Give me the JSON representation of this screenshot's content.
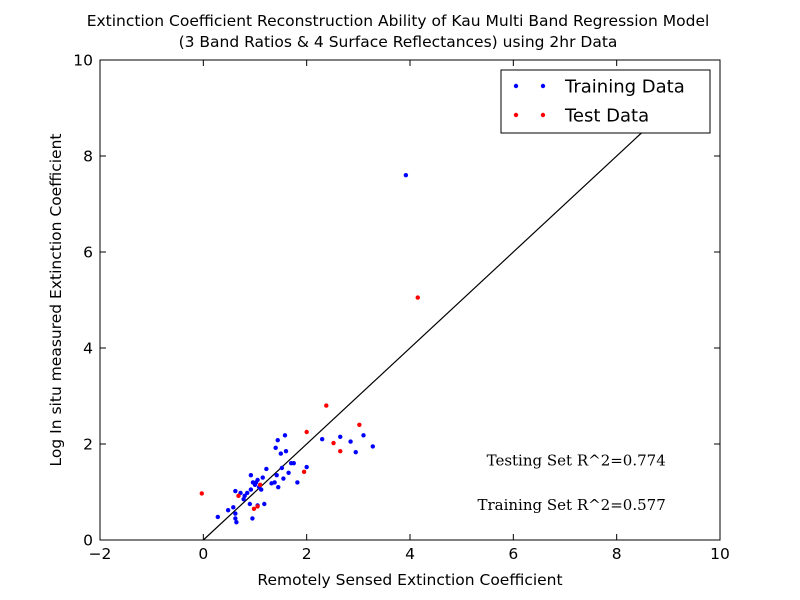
{
  "chart_data": {
    "type": "scatter",
    "title": "Extinction Coefficient Reconstruction Ability of Kau Multi Band Regression Model",
    "subtitle": "(3 Band Ratios & 4 Surface Reflectances) using 2hr Data",
    "xlabel": "Remotely Sensed Extinction Coefficient",
    "ylabel": "Log In situ measured Extinction Coefficient",
    "xlim": [
      -2,
      10
    ],
    "ylim": [
      0,
      10
    ],
    "xticks": [
      -2,
      0,
      2,
      4,
      6,
      8,
      10
    ],
    "yticks": [
      0,
      2,
      4,
      6,
      8,
      10
    ],
    "xtick_labels": [
      "−2",
      "0",
      "2",
      "4",
      "6",
      "8",
      "10"
    ],
    "ytick_labels": [
      "0",
      "2",
      "4",
      "6",
      "8",
      "10"
    ],
    "grid": false,
    "legend_position": "top-right",
    "reference_line": {
      "x": [
        0,
        8.5
      ],
      "y": [
        0,
        8.5
      ],
      "color": "#000000"
    },
    "series": [
      {
        "name": "Training Data",
        "color": "#0000ff",
        "points": [
          [
            0.28,
            0.48
          ],
          [
            0.48,
            0.62
          ],
          [
            0.58,
            0.68
          ],
          [
            0.62,
            0.55
          ],
          [
            0.62,
            0.45
          ],
          [
            0.64,
            0.37
          ],
          [
            0.62,
            1.02
          ],
          [
            0.72,
            0.98
          ],
          [
            0.78,
            0.85
          ],
          [
            0.8,
            0.92
          ],
          [
            0.85,
            0.98
          ],
          [
            0.92,
            1.05
          ],
          [
            0.9,
            0.75
          ],
          [
            0.92,
            1.35
          ],
          [
            0.95,
            0.45
          ],
          [
            0.96,
            1.2
          ],
          [
            1.0,
            1.15
          ],
          [
            1.02,
            1.2
          ],
          [
            1.05,
            1.25
          ],
          [
            1.05,
            0.72
          ],
          [
            1.08,
            1.1
          ],
          [
            1.12,
            1.05
          ],
          [
            1.15,
            1.3
          ],
          [
            1.18,
            0.75
          ],
          [
            1.22,
            1.48
          ],
          [
            1.32,
            1.18
          ],
          [
            1.38,
            1.2
          ],
          [
            1.4,
            1.92
          ],
          [
            1.42,
            1.35
          ],
          [
            1.44,
            2.08
          ],
          [
            1.45,
            1.1
          ],
          [
            1.5,
            1.8
          ],
          [
            1.52,
            1.5
          ],
          [
            1.55,
            1.28
          ],
          [
            1.58,
            2.18
          ],
          [
            1.6,
            1.85
          ],
          [
            1.65,
            1.4
          ],
          [
            1.7,
            1.6
          ],
          [
            1.75,
            1.6
          ],
          [
            1.82,
            1.2
          ],
          [
            2.0,
            1.52
          ],
          [
            2.3,
            2.1
          ],
          [
            2.65,
            2.15
          ],
          [
            2.85,
            2.05
          ],
          [
            2.95,
            1.83
          ],
          [
            3.1,
            2.18
          ],
          [
            3.28,
            1.95
          ],
          [
            3.92,
            7.6
          ]
        ]
      },
      {
        "name": "Test Data",
        "color": "#ff0000",
        "points": [
          [
            -0.03,
            0.97
          ],
          [
            0.68,
            0.92
          ],
          [
            0.98,
            0.65
          ],
          [
            1.05,
            0.7
          ],
          [
            1.1,
            1.15
          ],
          [
            1.95,
            1.42
          ],
          [
            2.0,
            2.25
          ],
          [
            2.38,
            2.8
          ],
          [
            2.52,
            2.02
          ],
          [
            2.65,
            1.85
          ],
          [
            3.02,
            2.4
          ],
          [
            4.15,
            5.05
          ]
        ]
      }
    ],
    "annotations": [
      {
        "text": "Testing Set R^2=0.774",
        "x": 8.95,
        "y": 1.55
      },
      {
        "text": "Training Set R^2=0.577",
        "x": 8.95,
        "y": 0.62
      }
    ]
  }
}
